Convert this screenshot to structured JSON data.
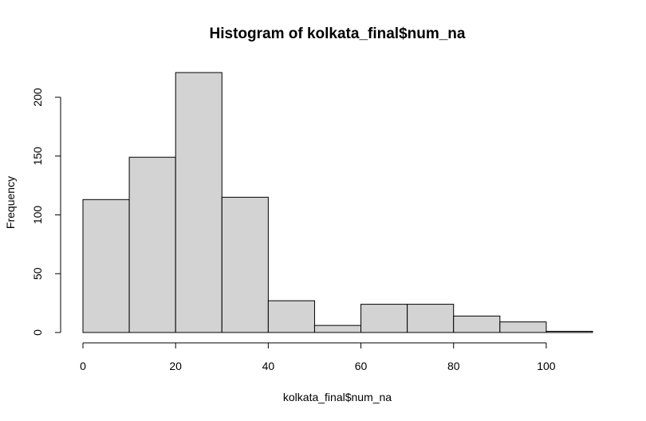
{
  "chart_data": {
    "type": "bar",
    "histogram": true,
    "title": "Histogram of kolkata_final$num_na",
    "xlabel": "kolkata_final$num_na",
    "ylabel": "Frequency",
    "bins": [
      {
        "x0": 0,
        "x1": 10,
        "count": 113
      },
      {
        "x0": 10,
        "x1": 20,
        "count": 149
      },
      {
        "x0": 20,
        "x1": 30,
        "count": 221
      },
      {
        "x0": 30,
        "x1": 40,
        "count": 115
      },
      {
        "x0": 40,
        "x1": 50,
        "count": 27
      },
      {
        "x0": 50,
        "x1": 60,
        "count": 6
      },
      {
        "x0": 60,
        "x1": 70,
        "count": 24
      },
      {
        "x0": 70,
        "x1": 80,
        "count": 24
      },
      {
        "x0": 80,
        "x1": 90,
        "count": 14
      },
      {
        "x0": 90,
        "x1": 100,
        "count": 9
      },
      {
        "x0": 100,
        "x1": 110,
        "count": 1
      }
    ],
    "xlim": [
      0,
      110
    ],
    "ylim": [
      0,
      221
    ],
    "xticks": [
      0,
      20,
      40,
      60,
      80,
      100
    ],
    "yticks": [
      0,
      50,
      100,
      150,
      200
    ],
    "bar_fill": "#d3d3d3",
    "bar_stroke": "#000000",
    "grid": false,
    "legend": "none"
  }
}
